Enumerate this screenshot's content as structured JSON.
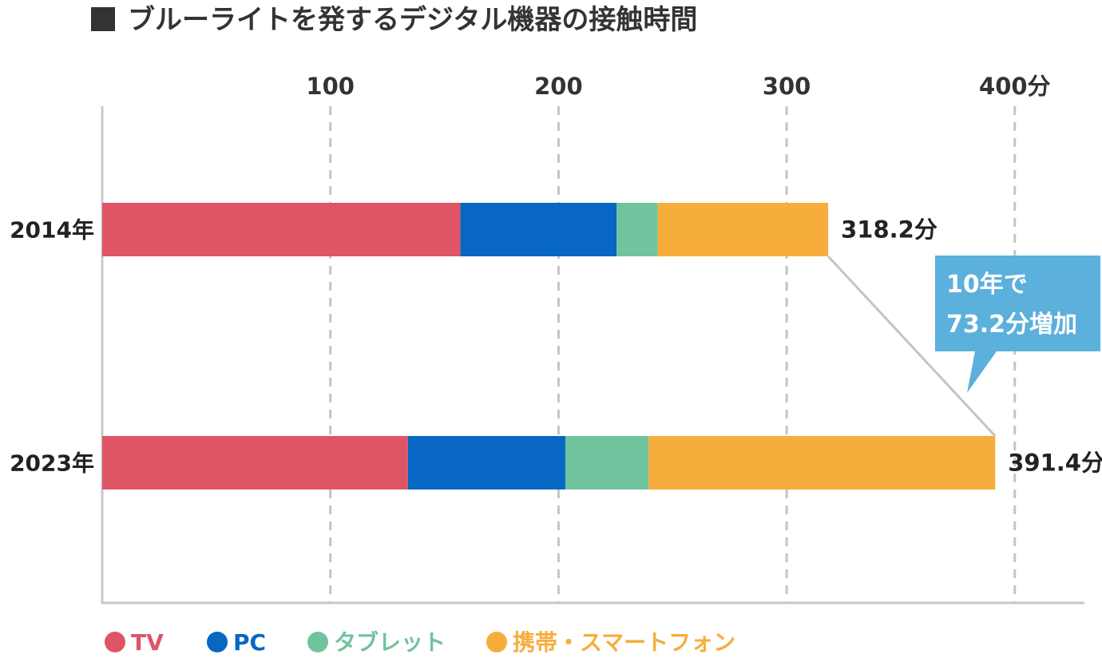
{
  "chart_data": {
    "type": "bar",
    "orientation": "horizontal",
    "stacked": true,
    "title": "ブルーライトを発するデジタル機器の接触時間",
    "categories": [
      "2014年",
      "2023年"
    ],
    "series": [
      {
        "name": "TV",
        "values": [
          157,
          134
        ],
        "color": "#df5565"
      },
      {
        "name": "PC",
        "values": [
          68.5,
          69
        ],
        "color": "#0767c3"
      },
      {
        "name": "タブレット",
        "values": [
          18,
          36.5
        ],
        "color": "#6fc49d"
      },
      {
        "name": "携帯・スマートフォン",
        "values": [
          74.7,
          151.9
        ],
        "color": "#f6ad3c"
      }
    ],
    "totals": [
      "318.2分",
      "391.4分"
    ],
    "total_values": [
      318.2,
      391.4
    ],
    "xlim": [
      0,
      400
    ],
    "x_ticks": [
      100,
      200,
      300,
      400
    ],
    "x_tick_labels": [
      "100",
      "200",
      "300",
      "400分"
    ],
    "grid": "dashed vertical",
    "legend_position": "bottom",
    "annotation": {
      "lines": [
        "10年で",
        "73.2分増加"
      ],
      "color": "#5bb0dc"
    }
  }
}
